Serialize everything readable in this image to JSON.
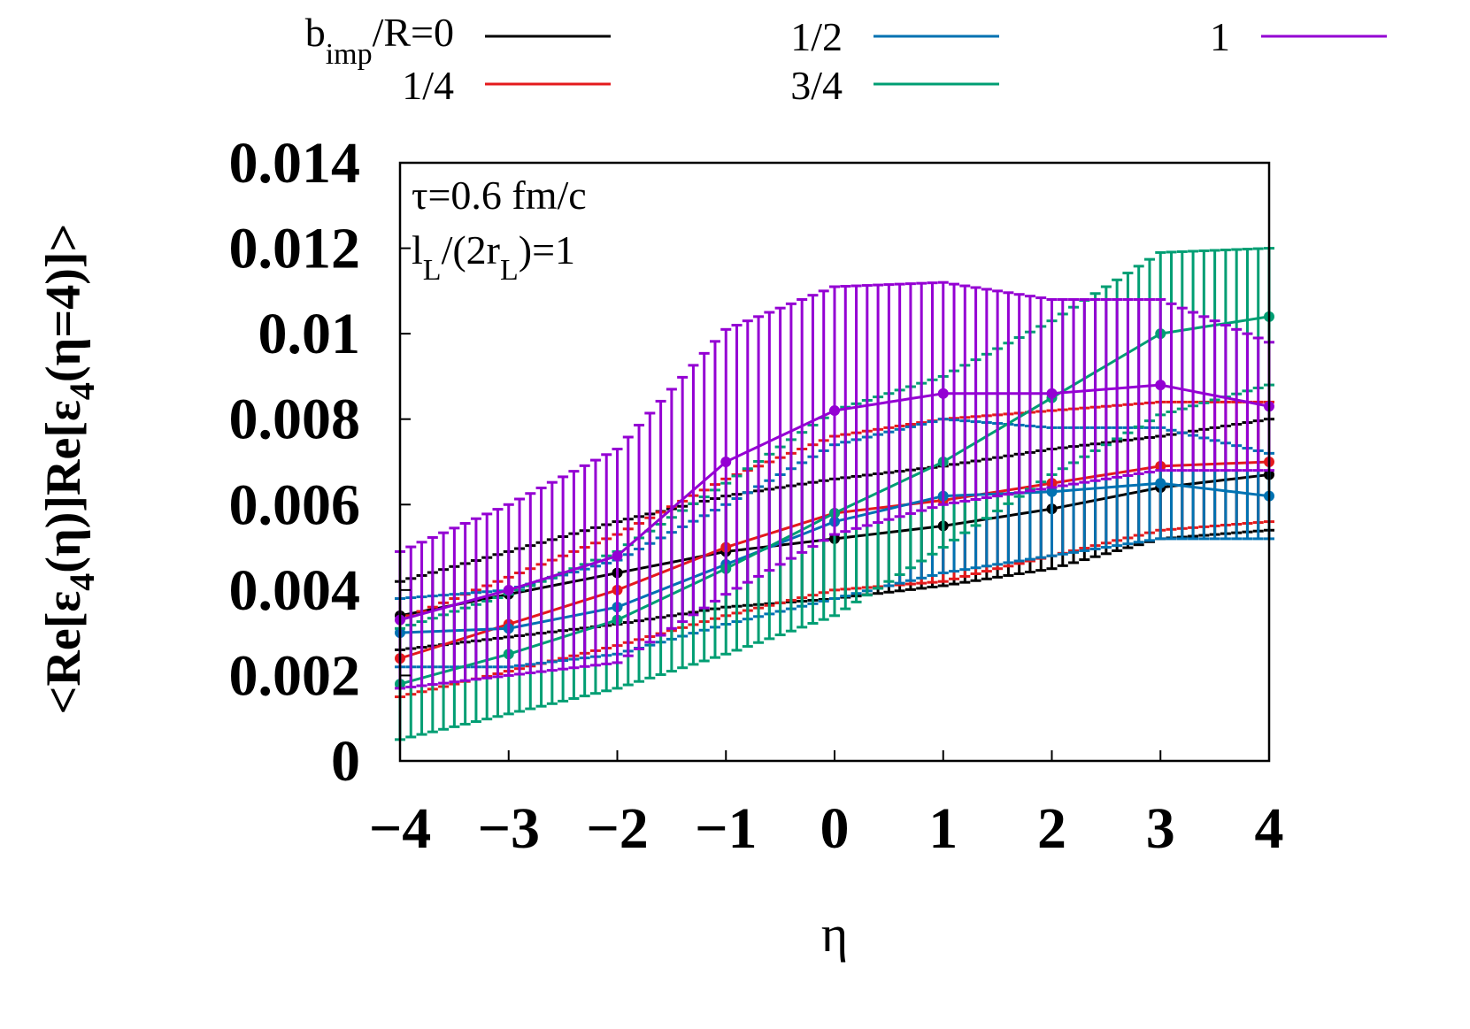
{
  "chart_data": {
    "type": "line",
    "xlabel": "η",
    "ylabel_parts": [
      "<Re[ε",
      "4",
      "(η)]Re[ε",
      "4",
      "(η=4)]>"
    ],
    "xlim": [
      -4,
      4
    ],
    "ylim": [
      0,
      0.014
    ],
    "xticks": [
      "−4",
      "−3",
      "−2",
      "−1",
      "0",
      "1",
      "2",
      "3",
      "4"
    ],
    "yticks": [
      "0",
      "0.002",
      "0.004",
      "0.006",
      "0.008",
      "0.01",
      "0.012",
      "0.014"
    ],
    "grid": false,
    "legend_placement": "top, outside",
    "annotations": {
      "tau": "τ=0.6 fm/c",
      "ratio_l": "l",
      "ratio_l_sub": "L",
      "ratio_mid": "/(2r",
      "ratio_r_sub": "L",
      "ratio_end": ")=1"
    },
    "legend_title_main": "b",
    "legend_title_sub": "imp",
    "legend_title_rest": "/R=0",
    "x": [
      -4,
      -3,
      -2,
      -1,
      0,
      1,
      2,
      3,
      4
    ],
    "series": [
      {
        "name": "b_imp/R=0",
        "label": "",
        "color": "#000000",
        "values": [
          0.0034,
          0.0039,
          0.0044,
          0.0049,
          0.0052,
          0.0055,
          0.0059,
          0.0064,
          0.0067
        ],
        "errors": [
          0.0008,
          0.001,
          0.0012,
          0.0013,
          0.0014,
          0.0014,
          0.0014,
          0.0012,
          0.0013
        ]
      },
      {
        "name": "1/4",
        "label": "1/4",
        "color": "#e41a1c",
        "values": [
          0.0024,
          0.0032,
          0.004,
          0.005,
          0.0058,
          0.0061,
          0.0065,
          0.0069,
          0.007
        ],
        "errors": [
          0.0009,
          0.0011,
          0.0013,
          0.0016,
          0.0018,
          0.0019,
          0.0017,
          0.0015,
          0.0014
        ]
      },
      {
        "name": "1/2",
        "label": "1/2",
        "color": "#0072b2",
        "values": [
          0.003,
          0.0031,
          0.0036,
          0.0046,
          0.0056,
          0.0062,
          0.0063,
          0.0065,
          0.0062
        ],
        "errors": [
          0.0008,
          0.0009,
          0.0011,
          0.0014,
          0.0018,
          0.0018,
          0.0015,
          0.0013,
          0.001
        ]
      },
      {
        "name": "3/4",
        "label": "3/4",
        "color": "#009e73",
        "values": [
          0.0018,
          0.0025,
          0.0033,
          0.0045,
          0.0058,
          0.007,
          0.0085,
          0.01,
          0.0104
        ],
        "errors": [
          0.0013,
          0.0014,
          0.0016,
          0.002,
          0.0024,
          0.002,
          0.0018,
          0.0019,
          0.0016
        ]
      },
      {
        "name": "1",
        "label": "1",
        "color": "#9400d3",
        "values": [
          0.0033,
          0.004,
          0.0048,
          0.007,
          0.0082,
          0.0086,
          0.0086,
          0.0088,
          0.0083
        ],
        "errors": [
          0.0016,
          0.002,
          0.0025,
          0.0031,
          0.0029,
          0.0026,
          0.0022,
          0.002,
          0.0015
        ]
      }
    ]
  }
}
